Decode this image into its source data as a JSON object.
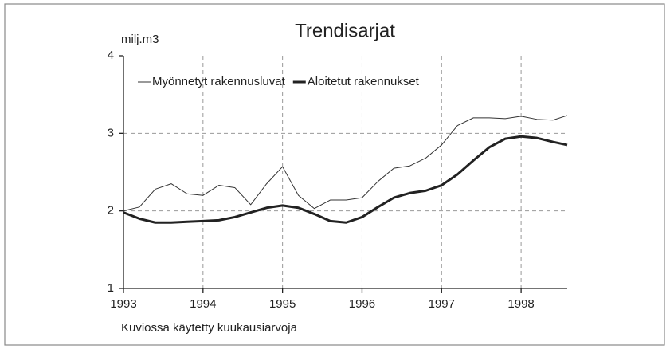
{
  "chart_data": {
    "type": "line",
    "title": "Trendisarjat",
    "y_label": "milj.m3",
    "note": "Kuviossa käytetty kuukausiarvoja",
    "x": [
      1993,
      1993.2,
      1993.4,
      1993.6,
      1993.8,
      1994,
      1994.2,
      1994.4,
      1994.6,
      1994.8,
      1995,
      1995.2,
      1995.4,
      1995.6,
      1995.8,
      1996,
      1996.2,
      1996.4,
      1996.6,
      1996.8,
      1997,
      1997.2,
      1997.4,
      1997.6,
      1997.8,
      1998,
      1998.2,
      1998.4,
      1998.58
    ],
    "series": [
      {
        "name": "Myönnetyt rakennusluvat",
        "color": "#333333",
        "width": 1,
        "values": [
          2.0,
          2.05,
          2.28,
          2.35,
          2.22,
          2.2,
          2.33,
          2.3,
          2.08,
          2.35,
          2.57,
          2.2,
          2.03,
          2.14,
          2.14,
          2.17,
          2.38,
          2.55,
          2.58,
          2.68,
          2.85,
          3.1,
          3.2,
          3.2,
          3.19,
          3.22,
          3.18,
          3.17,
          3.23
        ]
      },
      {
        "name": "Aloitetut rakennukset",
        "color": "#222222",
        "width": 3,
        "values": [
          1.98,
          1.9,
          1.85,
          1.85,
          1.86,
          1.87,
          1.88,
          1.92,
          1.98,
          2.04,
          2.07,
          2.04,
          1.96,
          1.87,
          1.85,
          1.92,
          2.05,
          2.17,
          2.23,
          2.26,
          2.33,
          2.47,
          2.65,
          2.82,
          2.93,
          2.96,
          2.94,
          2.89,
          2.85
        ]
      }
    ],
    "xlim": [
      1993,
      1998.58
    ],
    "xticks": [
      1993,
      1994,
      1995,
      1996,
      1997,
      1998
    ],
    "ylim": [
      1,
      4
    ],
    "yticks": [
      1,
      2,
      3,
      4
    ],
    "grid": true,
    "legend": "top-left"
  }
}
